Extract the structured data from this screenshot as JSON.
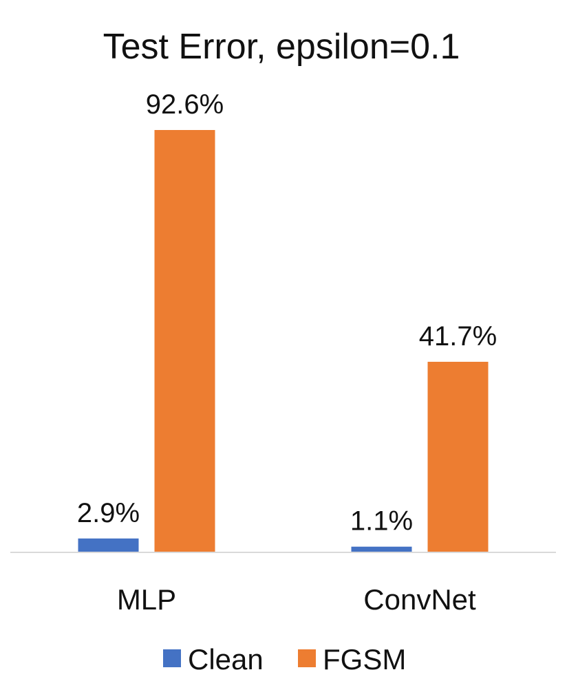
{
  "chart_data": {
    "type": "bar",
    "title": "Test Error, epsilon=0.1",
    "xlabel": "",
    "ylabel": "",
    "categories": [
      "MLP",
      "ConvNet"
    ],
    "series": [
      {
        "name": "Clean",
        "color": "#4472C4",
        "values": [
          2.9,
          1.1
        ],
        "labels": [
          "2.9%",
          "1.1%"
        ]
      },
      {
        "name": "FGSM",
        "color": "#ED7D31",
        "values": [
          92.6,
          41.7
        ],
        "labels": [
          "92.6%",
          "41.7%"
        ]
      }
    ],
    "ylim": [
      0,
      92.6
    ],
    "grid": false,
    "y_axis_visible": false,
    "legend_position": "bottom",
    "baseline_color": "#D9D9D9"
  }
}
